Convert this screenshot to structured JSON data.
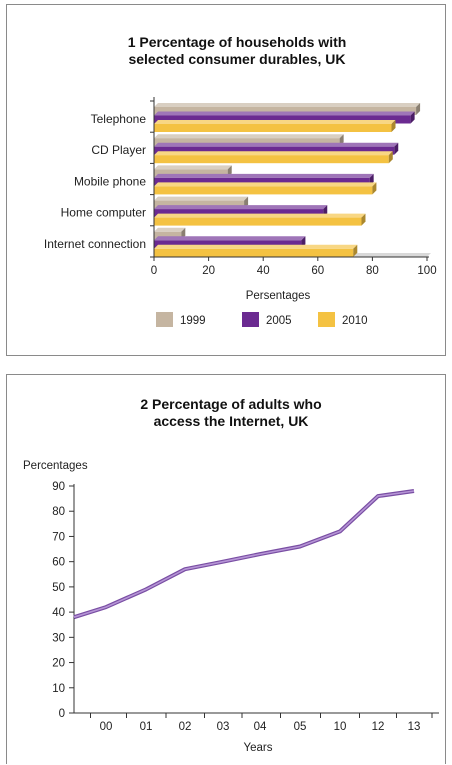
{
  "chart_data": [
    {
      "type": "bar",
      "orientation": "horizontal",
      "title": [
        "1 Percentage of households with",
        "selected consumer durables, UK"
      ],
      "xlabel": "Persentages",
      "xlim": [
        0,
        100
      ],
      "xticks": [
        0,
        20,
        40,
        60,
        80,
        100
      ],
      "categories": [
        "Telephone",
        "CD Player",
        "Mobile phone",
        "Home computer",
        "Internet connection"
      ],
      "series": [
        {
          "name": "1999",
          "color": "#c5b5a1",
          "values": [
            96,
            68,
            27,
            33,
            10
          ]
        },
        {
          "name": "2005",
          "color": "#6b2a91",
          "values": [
            94,
            88,
            79,
            62,
            54
          ]
        },
        {
          "name": "2010",
          "color": "#f4c242",
          "values": [
            87,
            86,
            80,
            76,
            73
          ]
        }
      ],
      "legend_position": "bottom",
      "grid": false
    },
    {
      "type": "line",
      "title": [
        "2 Percentage of adults who",
        "access the Internet, UK"
      ],
      "ylabel": "Percentages",
      "xlabel": "Years",
      "ylim": [
        0,
        90
      ],
      "yticks": [
        0,
        10,
        20,
        30,
        40,
        50,
        60,
        70,
        80,
        90
      ],
      "x": [
        "",
        "00",
        "01",
        "02",
        "03",
        "04",
        "05",
        "10",
        "12",
        "13"
      ],
      "series": [
        {
          "color": "#8e5cc0",
          "values": [
            38,
            42,
            49,
            57,
            60,
            63,
            66,
            72,
            86,
            88
          ]
        }
      ],
      "grid": false
    }
  ]
}
